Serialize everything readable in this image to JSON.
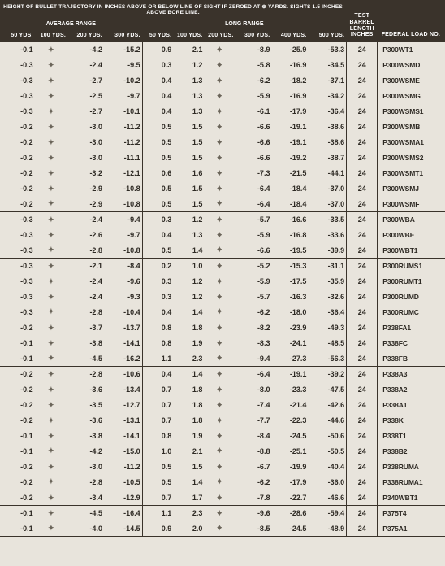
{
  "colors": {
    "header_bg": "#3a332b",
    "header_fg": "#ffffff",
    "body_bg": "#e8e4dc",
    "text": "#2e2a24",
    "sym": "#6b655a",
    "line": "#3a332b"
  },
  "font": {
    "family": "Arial",
    "header_size_pt": 6.5,
    "cell_size_pt": 9,
    "cell_weight": "bold"
  },
  "symbol": "✦",
  "header": {
    "main_title": "HEIGHT OF BULLET TRAJECTORY IN INCHES ABOVE OR BELOW LINE OF SIGHT IF ZEROED AT ⊕ YARDS. SIGHTS 1.5 INCHES ABOVE BORE LINE.",
    "average_range": "AVERAGE RANGE",
    "long_range": "LONG RANGE",
    "test_barrel": "TEST BARREL LENGTH INCHES",
    "federal_load": "FEDERAL LOAD NO.",
    "avg_cols": [
      "50 YDS.",
      "100 YDS.",
      "200 YDS.",
      "300 YDS."
    ],
    "long_cols": [
      "50 YDS.",
      "100 YDS.",
      "200 YDS.",
      "300 YDS.",
      "400 YDS.",
      "500 YDS."
    ]
  },
  "groups": [
    {
      "rows": [
        {
          "a50": "-0.1",
          "a200": "-4.2",
          "a300": "-15.2",
          "l50": "0.9",
          "l100": "2.1",
          "l300": "-8.9",
          "l400": "-25.9",
          "l500": "-53.3",
          "barrel": "24",
          "load": "P300WT1"
        },
        {
          "a50": "-0.3",
          "a200": "-2.4",
          "a300": "-9.5",
          "l50": "0.3",
          "l100": "1.2",
          "l300": "-5.8",
          "l400": "-16.9",
          "l500": "-34.5",
          "barrel": "24",
          "load": "P300WSMD"
        },
        {
          "a50": "-0.3",
          "a200": "-2.7",
          "a300": "-10.2",
          "l50": "0.4",
          "l100": "1.3",
          "l300": "-6.2",
          "l400": "-18.2",
          "l500": "-37.1",
          "barrel": "24",
          "load": "P300WSME"
        },
        {
          "a50": "-0.3",
          "a200": "-2.5",
          "a300": "-9.7",
          "l50": "0.4",
          "l100": "1.3",
          "l300": "-5.9",
          "l400": "-16.9",
          "l500": "-34.2",
          "barrel": "24",
          "load": "P300WSMG"
        },
        {
          "a50": "-0.3",
          "a200": "-2.7",
          "a300": "-10.1",
          "l50": "0.4",
          "l100": "1.3",
          "l300": "-6.1",
          "l400": "-17.9",
          "l500": "-36.4",
          "barrel": "24",
          "load": "P300WSMS1"
        },
        {
          "a50": "-0.2",
          "a200": "-3.0",
          "a300": "-11.2",
          "l50": "0.5",
          "l100": "1.5",
          "l300": "-6.6",
          "l400": "-19.1",
          "l500": "-38.6",
          "barrel": "24",
          "load": "P300WSMB"
        },
        {
          "a50": "-0.2",
          "a200": "-3.0",
          "a300": "-11.2",
          "l50": "0.5",
          "l100": "1.5",
          "l300": "-6.6",
          "l400": "-19.1",
          "l500": "-38.6",
          "barrel": "24",
          "load": "P300WSMA1"
        },
        {
          "a50": "-0.2",
          "a200": "-3.0",
          "a300": "-11.1",
          "l50": "0.5",
          "l100": "1.5",
          "l300": "-6.6",
          "l400": "-19.2",
          "l500": "-38.7",
          "barrel": "24",
          "load": "P300WSMS2"
        },
        {
          "a50": "-0.2",
          "a200": "-3.2",
          "a300": "-12.1",
          "l50": "0.6",
          "l100": "1.6",
          "l300": "-7.3",
          "l400": "-21.5",
          "l500": "-44.1",
          "barrel": "24",
          "load": "P300WSMT1"
        },
        {
          "a50": "-0.2",
          "a200": "-2.9",
          "a300": "-10.8",
          "l50": "0.5",
          "l100": "1.5",
          "l300": "-6.4",
          "l400": "-18.4",
          "l500": "-37.0",
          "barrel": "24",
          "load": "P300WSMJ"
        },
        {
          "a50": "-0.2",
          "a200": "-2.9",
          "a300": "-10.8",
          "l50": "0.5",
          "l100": "1.5",
          "l300": "-6.4",
          "l400": "-18.4",
          "l500": "-37.0",
          "barrel": "24",
          "load": "P300WSMF"
        }
      ]
    },
    {
      "rows": [
        {
          "a50": "-0.3",
          "a200": "-2.4",
          "a300": "-9.4",
          "l50": "0.3",
          "l100": "1.2",
          "l300": "-5.7",
          "l400": "-16.6",
          "l500": "-33.5",
          "barrel": "24",
          "load": "P300WBA"
        },
        {
          "a50": "-0.3",
          "a200": "-2.6",
          "a300": "-9.7",
          "l50": "0.4",
          "l100": "1.3",
          "l300": "-5.9",
          "l400": "-16.8",
          "l500": "-33.6",
          "barrel": "24",
          "load": "P300WBE"
        },
        {
          "a50": "-0.3",
          "a200": "-2.8",
          "a300": "-10.8",
          "l50": "0.5",
          "l100": "1.4",
          "l300": "-6.6",
          "l400": "-19.5",
          "l500": "-39.9",
          "barrel": "24",
          "load": "P300WBT1"
        }
      ]
    },
    {
      "rows": [
        {
          "a50": "-0.3",
          "a200": "-2.1",
          "a300": "-8.4",
          "l50": "0.2",
          "l100": "1.0",
          "l300": "-5.2",
          "l400": "-15.3",
          "l500": "-31.1",
          "barrel": "24",
          "load": "P300RUMS1"
        },
        {
          "a50": "-0.3",
          "a200": "-2.4",
          "a300": "-9.6",
          "l50": "0.3",
          "l100": "1.2",
          "l300": "-5.9",
          "l400": "-17.5",
          "l500": "-35.9",
          "barrel": "24",
          "load": "P300RUMT1"
        },
        {
          "a50": "-0.3",
          "a200": "-2.4",
          "a300": "-9.3",
          "l50": "0.3",
          "l100": "1.2",
          "l300": "-5.7",
          "l400": "-16.3",
          "l500": "-32.6",
          "barrel": "24",
          "load": "P300RUMD"
        },
        {
          "a50": "-0.3",
          "a200": "-2.8",
          "a300": "-10.4",
          "l50": "0.4",
          "l100": "1.4",
          "l300": "-6.2",
          "l400": "-18.0",
          "l500": "-36.4",
          "barrel": "24",
          "load": "P300RUMC"
        }
      ]
    },
    {
      "rows": [
        {
          "a50": "-0.2",
          "a200": "-3.7",
          "a300": "-13.7",
          "l50": "0.8",
          "l100": "1.8",
          "l300": "-8.2",
          "l400": "-23.9",
          "l500": "-49.3",
          "barrel": "24",
          "load": "P338FA1"
        },
        {
          "a50": "-0.1",
          "a200": "-3.8",
          "a300": "-14.1",
          "l50": "0.8",
          "l100": "1.9",
          "l300": "-8.3",
          "l400": "-24.1",
          "l500": "-48.5",
          "barrel": "24",
          "load": "P338FC"
        },
        {
          "a50": "-0.1",
          "a200": "-4.5",
          "a300": "-16.2",
          "l50": "1.1",
          "l100": "2.3",
          "l300": "-9.4",
          "l400": "-27.3",
          "l500": "-56.3",
          "barrel": "24",
          "load": "P338FB"
        }
      ]
    },
    {
      "rows": [
        {
          "a50": "-0.2",
          "a200": "-2.8",
          "a300": "-10.6",
          "l50": "0.4",
          "l100": "1.4",
          "l300": "-6.4",
          "l400": "-19.1",
          "l500": "-39.2",
          "barrel": "24",
          "load": "P338A3"
        },
        {
          "a50": "-0.2",
          "a200": "-3.6",
          "a300": "-13.4",
          "l50": "0.7",
          "l100": "1.8",
          "l300": "-8.0",
          "l400": "-23.3",
          "l500": "-47.5",
          "barrel": "24",
          "load": "P338A2"
        },
        {
          "a50": "-0.2",
          "a200": "-3.5",
          "a300": "-12.7",
          "l50": "0.7",
          "l100": "1.8",
          "l300": "-7.4",
          "l400": "-21.4",
          "l500": "-42.6",
          "barrel": "24",
          "load": "P338A1"
        },
        {
          "a50": "-0.2",
          "a200": "-3.6",
          "a300": "-13.1",
          "l50": "0.7",
          "l100": "1.8",
          "l300": "-7.7",
          "l400": "-22.3",
          "l500": "-44.6",
          "barrel": "24",
          "load": "P338K"
        },
        {
          "a50": "-0.1",
          "a200": "-3.8",
          "a300": "-14.1",
          "l50": "0.8",
          "l100": "1.9",
          "l300": "-8.4",
          "l400": "-24.5",
          "l500": "-50.6",
          "barrel": "24",
          "load": "P338T1"
        },
        {
          "a50": "-0.1",
          "a200": "-4.2",
          "a300": "-15.0",
          "l50": "1.0",
          "l100": "2.1",
          "l300": "-8.8",
          "l400": "-25.1",
          "l500": "-50.5",
          "barrel": "24",
          "load": "P338B2"
        }
      ]
    },
    {
      "rows": [
        {
          "a50": "-0.2",
          "a200": "-3.0",
          "a300": "-11.2",
          "l50": "0.5",
          "l100": "1.5",
          "l300": "-6.7",
          "l400": "-19.9",
          "l500": "-40.4",
          "barrel": "24",
          "load": "P338RUMA"
        },
        {
          "a50": "-0.2",
          "a200": "-2.8",
          "a300": "-10.5",
          "l50": "0.5",
          "l100": "1.4",
          "l300": "-6.2",
          "l400": "-17.9",
          "l500": "-36.0",
          "barrel": "24",
          "load": "P338RUMA1"
        }
      ]
    },
    {
      "rows": [
        {
          "a50": "-0.2",
          "a200": "-3.4",
          "a300": "-12.9",
          "l50": "0.7",
          "l100": "1.7",
          "l300": "-7.8",
          "l400": "-22.7",
          "l500": "-46.6",
          "barrel": "24",
          "load": "P340WBT1"
        }
      ]
    },
    {
      "rows": [
        {
          "a50": "-0.1",
          "a200": "-4.5",
          "a300": "-16.4",
          "l50": "1.1",
          "l100": "2.3",
          "l300": "-9.6",
          "l400": "-28.6",
          "l500": "-59.4",
          "barrel": "24",
          "load": "P375T4"
        },
        {
          "a50": "-0.1",
          "a200": "-4.0",
          "a300": "-14.5",
          "l50": "0.9",
          "l100": "2.0",
          "l300": "-8.5",
          "l400": "-24.5",
          "l500": "-48.9",
          "barrel": "24",
          "load": "P375A1"
        }
      ]
    }
  ]
}
